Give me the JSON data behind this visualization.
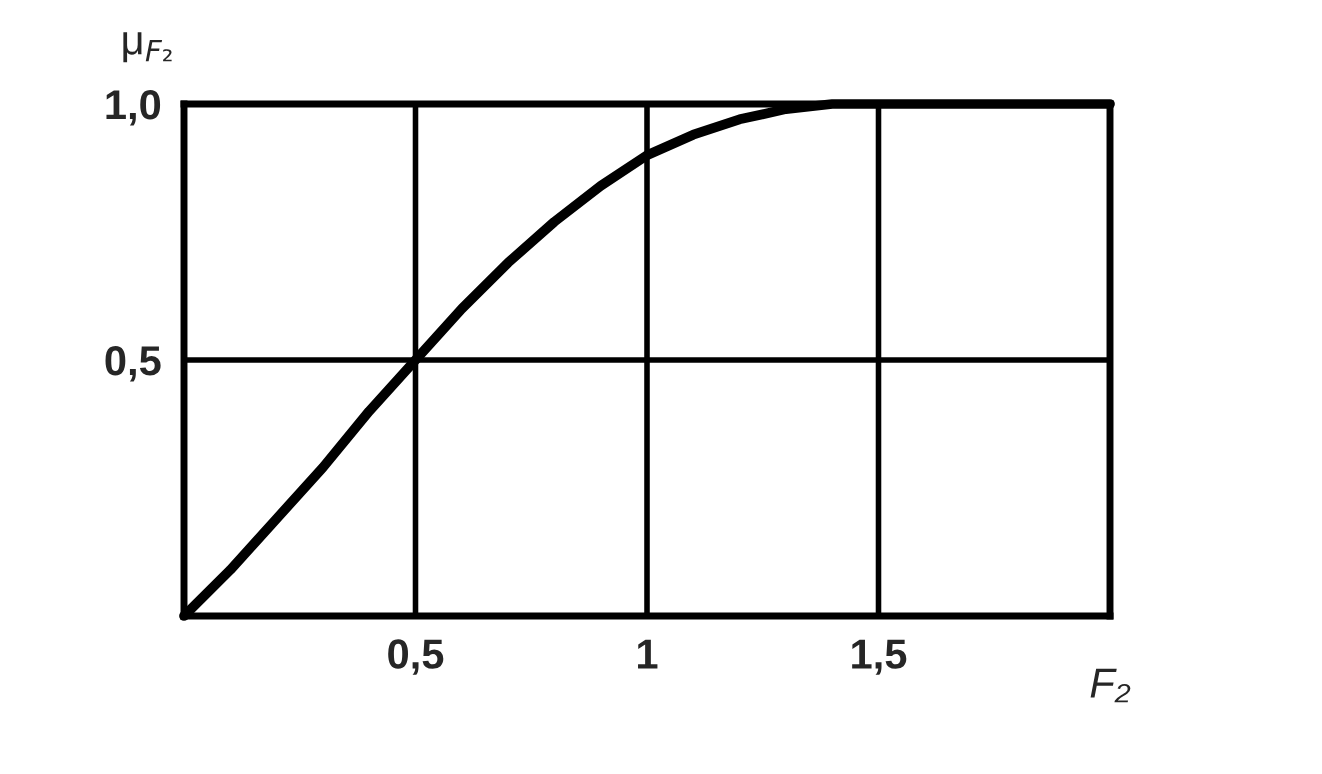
{
  "chart_data": {
    "type": "line",
    "xlabel": "F₂",
    "ylabel": "μ$_{F₂}$",
    "x": [
      0,
      0.1,
      0.2,
      0.3,
      0.4,
      0.5,
      0.6,
      0.7,
      0.8,
      0.9,
      1.0,
      1.1,
      1.2,
      1.3,
      1.4,
      2.0
    ],
    "series": [
      {
        "color": "#000000",
        "values": [
          0,
          0.09,
          0.19,
          0.29,
          0.4,
          0.5,
          0.6,
          0.69,
          0.77,
          0.84,
          0.9,
          0.94,
          0.97,
          0.99,
          1.0,
          1.0
        ]
      }
    ],
    "xlim": [
      0,
      2
    ],
    "ylim": [
      0,
      1
    ],
    "xticks": [
      {
        "value": 0.5,
        "label": "0,5"
      },
      1,
      {
        "value": 1.5,
        "label": "1,5"
      }
    ],
    "yticks": [
      {
        "value": 0.5,
        "label": "0,5"
      },
      {
        "value": 1.0,
        "label": "1,0"
      }
    ],
    "grid": true,
    "marker": "none",
    "line_style": "solid"
  }
}
